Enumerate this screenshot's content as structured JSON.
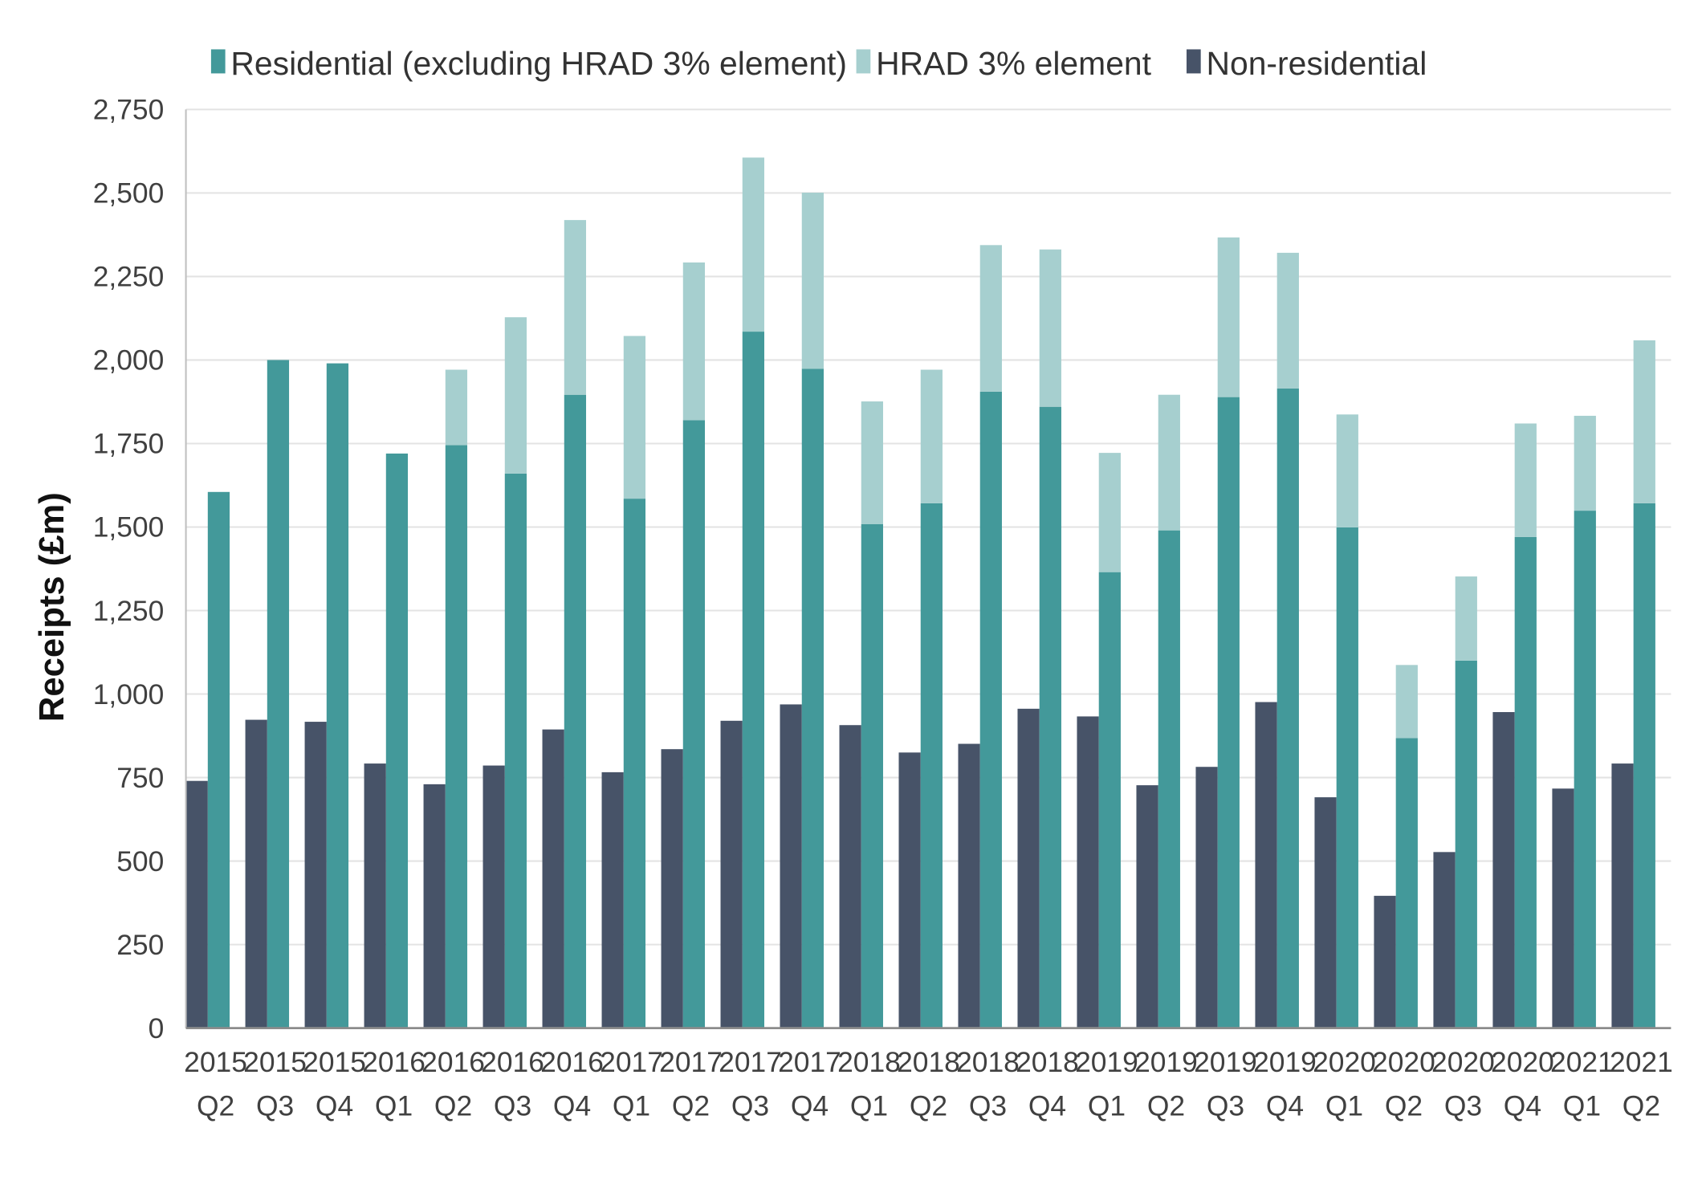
{
  "chart_data": {
    "type": "bar",
    "stacked": true,
    "title": "",
    "xlabel": "",
    "ylabel": "Receipts (£m)",
    "ylim": [
      0,
      2750
    ],
    "yticks": [
      0,
      250,
      500,
      750,
      1000,
      1250,
      1500,
      1750,
      2000,
      2250,
      2500,
      2750
    ],
    "ytick_labels": [
      "0",
      "250",
      "500",
      "750",
      "1,000",
      "1,250",
      "1,500",
      "1,750",
      "2,000",
      "2,250",
      "2,500",
      "2,750"
    ],
    "grid": true,
    "legend_position": "top",
    "categories": [
      [
        "2015",
        "Q2"
      ],
      [
        "2015",
        "Q3"
      ],
      [
        "2015",
        "Q4"
      ],
      [
        "2016",
        "Q1"
      ],
      [
        "2016",
        "Q2"
      ],
      [
        "2016",
        "Q3"
      ],
      [
        "2016",
        "Q4"
      ],
      [
        "2017",
        "Q1"
      ],
      [
        "2017",
        "Q2"
      ],
      [
        "2017",
        "Q3"
      ],
      [
        "2017",
        "Q4"
      ],
      [
        "2018",
        "Q1"
      ],
      [
        "2018",
        "Q2"
      ],
      [
        "2018",
        "Q3"
      ],
      [
        "2018",
        "Q4"
      ],
      [
        "2019",
        "Q1"
      ],
      [
        "2019",
        "Q2"
      ],
      [
        "2019",
        "Q3"
      ],
      [
        "2019",
        "Q4"
      ],
      [
        "2020",
        "Q1"
      ],
      [
        "2020",
        "Q2"
      ],
      [
        "2020",
        "Q3"
      ],
      [
        "2020",
        "Q4"
      ],
      [
        "2021",
        "Q1"
      ],
      [
        "2021",
        "Q2"
      ]
    ],
    "series": [
      {
        "name": "Residential (excluding HRAD 3% element)",
        "color": "#43999a",
        "stack": "residential",
        "values": [
          1605,
          2000,
          1990,
          1720,
          1745,
          1660,
          1896,
          1585,
          1820,
          2085,
          1974,
          1509,
          1571,
          1905,
          1860,
          1365,
          1490,
          1889,
          1915,
          1499,
          868,
          1100,
          1470,
          1549,
          1571
        ]
      },
      {
        "name": "HRAD 3% element",
        "color": "#a6cfcf",
        "stack": "residential",
        "values": [
          0,
          0,
          0,
          0,
          226,
          468,
          523,
          487,
          472,
          521,
          527,
          367,
          400,
          439,
          471,
          357,
          406,
          478,
          406,
          338,
          219,
          252,
          340,
          284,
          488
        ]
      },
      {
        "name": "Non-residential",
        "color": "#475368",
        "stack": "non-residential",
        "values": [
          740,
          923,
          917,
          792,
          730,
          786,
          894,
          766,
          835,
          920,
          969,
          907,
          825,
          851,
          956,
          933,
          727,
          782,
          976,
          691,
          396,
          527,
          946,
          717,
          792
        ]
      }
    ]
  }
}
